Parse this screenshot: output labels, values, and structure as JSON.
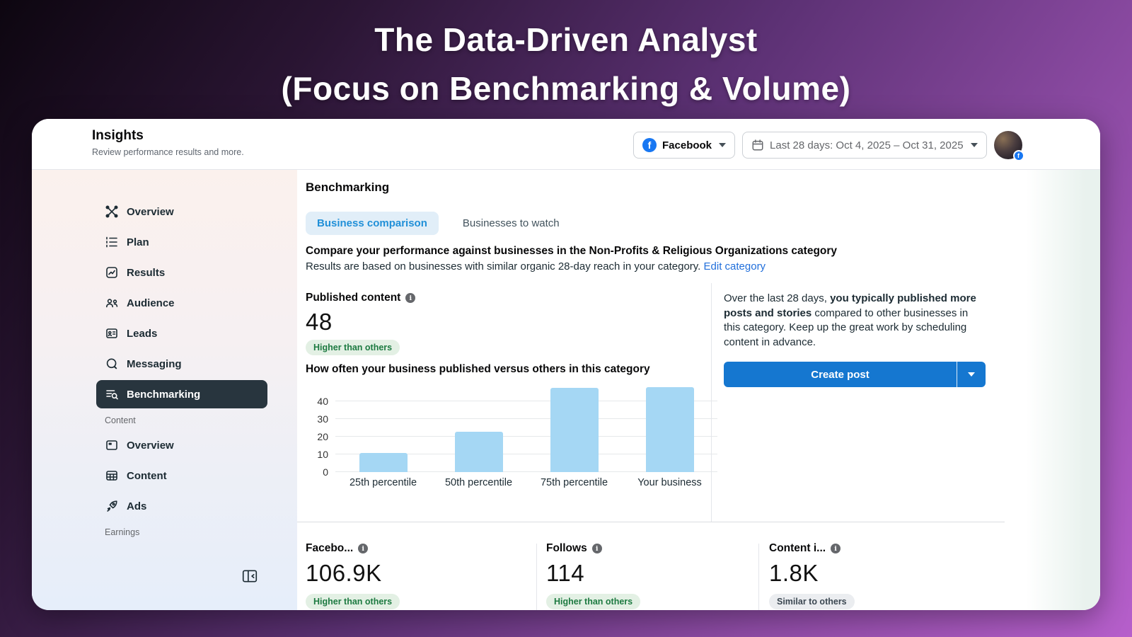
{
  "banner": {
    "line1": "The Data-Driven Analyst",
    "line2": "(Focus on Benchmarking & Volume)"
  },
  "header": {
    "title": "Insights",
    "subtitle": "Review performance results and more.",
    "platform_selector": {
      "label": "Facebook",
      "icon": "facebook-logo"
    },
    "date_range": {
      "label": "Last 28 days: Oct 4, 2025 – Oct 31, 2025",
      "icon": "calendar-icon"
    }
  },
  "sidebar": {
    "items": [
      {
        "label": "Overview",
        "icon": "overview-hub-icon",
        "selected": false
      },
      {
        "label": "Plan",
        "icon": "plan-list-icon",
        "selected": false
      },
      {
        "label": "Results",
        "icon": "results-chart-icon",
        "selected": false
      },
      {
        "label": "Audience",
        "icon": "audience-people-icon",
        "selected": false
      },
      {
        "label": "Leads",
        "icon": "leads-card-icon",
        "selected": false
      },
      {
        "label": "Messaging",
        "icon": "messaging-bubble-icon",
        "selected": false
      },
      {
        "label": "Benchmarking",
        "icon": "benchmarking-search-icon",
        "selected": true
      },
      {
        "label": "Overview",
        "icon": "content-overview-icon",
        "selected": false
      },
      {
        "label": "Content",
        "icon": "content-grid-icon",
        "selected": false
      },
      {
        "label": "Ads",
        "icon": "ads-rocket-icon",
        "selected": false
      }
    ],
    "sections": {
      "content": "Content",
      "earnings": "Earnings"
    }
  },
  "main": {
    "heading": "Benchmarking",
    "tabs": [
      {
        "label": "Business comparison",
        "active": true
      },
      {
        "label": "Businesses to watch",
        "active": false
      }
    ],
    "compare_heading": "Compare your performance against businesses in the Non-Profits & Religious Organizations category",
    "compare_subtext": "Results are based on businesses with similar organic 28-day reach in your category.",
    "edit_category_link": "Edit category",
    "published": {
      "label": "Published content",
      "value": "48",
      "badge": "Higher than others"
    },
    "insight": {
      "text_intro": "Over the last 28 days, ",
      "text_bold": "you typically published more posts and stories",
      "text_rest": " compared to other businesses in this category. Keep up the great work by scheduling content in advance."
    },
    "create_post_label": "Create post",
    "metrics": [
      {
        "label": "Facebo...",
        "value": "106.9K",
        "badge": "Higher than others",
        "badge_type": "green"
      },
      {
        "label": "Follows",
        "value": "114",
        "badge": "Higher than others",
        "badge_type": "green"
      },
      {
        "label": "Content i...",
        "value": "1.8K",
        "badge": "Similar to others",
        "badge_type": "gray"
      }
    ]
  },
  "chart_data": {
    "type": "bar",
    "title": "How often your business published versus others in this category",
    "categories": [
      "25th percentile",
      "50th percentile",
      "75th percentile",
      "Your business"
    ],
    "values": [
      11,
      23,
      47.5,
      48
    ],
    "xlabel": "",
    "ylabel": "",
    "yticks": [
      0,
      10,
      20,
      30,
      40
    ],
    "ylim": [
      0,
      48.8
    ],
    "grid": true,
    "legend": false,
    "bar_color": "#a5d7f4"
  },
  "colors": {
    "background_gradient_start": "#0d0610",
    "background_gradient_end": "#b65fcb",
    "facebook_blue": "#1877f2",
    "create_post_blue": "#1577d0",
    "tab_active_text": "#2190d8",
    "tab_active_bg": "#e1eef8",
    "link_blue": "#216fdb",
    "badge_green_text": "#1d7a41",
    "badge_green_bg": "#e3f0e4",
    "bar_blue": "#a5d7f4",
    "selected_nav_bg": "#28353e"
  }
}
